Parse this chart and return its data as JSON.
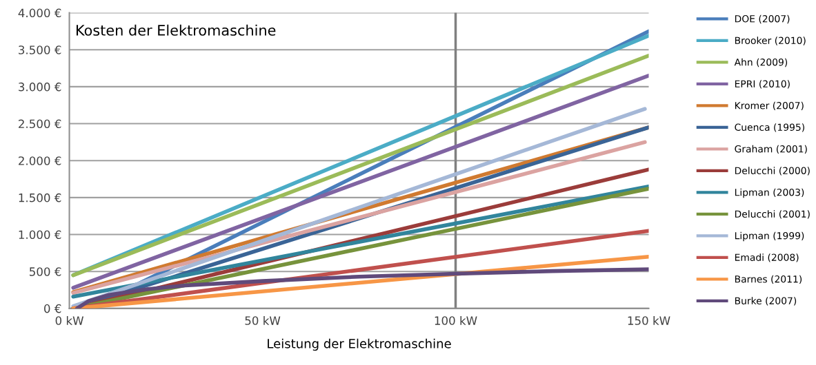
{
  "chart_data": {
    "type": "line",
    "title": "Kosten der Elektromaschine",
    "xlabel": "Leistung der Elektromaschine",
    "xlim": [
      0,
      150
    ],
    "ylim": [
      0,
      4000
    ],
    "xticks": [
      {
        "value": 0,
        "label": "0 kW"
      },
      {
        "value": 50,
        "label": "50 kW"
      },
      {
        "value": 100,
        "label": "100 kW"
      },
      {
        "value": 150,
        "label": "150 kW"
      }
    ],
    "yticks": [
      {
        "value": 0,
        "label": "0 €"
      },
      {
        "value": 500,
        "label": "500 €"
      },
      {
        "value": 1000,
        "label": "1.000 €"
      },
      {
        "value": 1500,
        "label": "1.500 €"
      },
      {
        "value": 2000,
        "label": "2.000 €"
      },
      {
        "value": 2500,
        "label": "2.500 €"
      },
      {
        "value": 3000,
        "label": "3.000 €"
      },
      {
        "value": 3500,
        "label": "3.500 €"
      },
      {
        "value": 4000,
        "label": "4.000 €"
      }
    ],
    "grid": "y",
    "legend": "right",
    "marker": "none",
    "line_style": "solid",
    "ref_lines": [
      {
        "axis": "x",
        "value": 100,
        "color": "#808080"
      }
    ],
    "series": [
      {
        "name": "DOE (2007)",
        "color": "#4a7ebb",
        "x": [
          5,
          150
        ],
        "values": [
          0,
          3750
        ]
      },
      {
        "name": "Brooker (2010)",
        "color": "#4bacc6",
        "x": [
          1,
          150
        ],
        "values": [
          450,
          3690
        ]
      },
      {
        "name": "Ahn (2009)",
        "color": "#9bbb59",
        "x": [
          1,
          150
        ],
        "values": [
          450,
          3420
        ]
      },
      {
        "name": "EPRI (2010)",
        "color": "#8064a2",
        "x": [
          1,
          150
        ],
        "values": [
          280,
          3150
        ]
      },
      {
        "name": "Kromer (2007)",
        "color": "#d07a30",
        "x": [
          1,
          150
        ],
        "values": [
          220,
          2450
        ]
      },
      {
        "name": "Cuenca (1995)",
        "color": "#3a6496",
        "x": [
          1,
          150
        ],
        "values": [
          0,
          2450
        ]
      },
      {
        "name": "Graham (2001)",
        "color": "#dba3a1",
        "x": [
          1,
          149
        ],
        "values": [
          210,
          2250
        ]
      },
      {
        "name": "Delucchi (2000)",
        "color": "#9b3c3a",
        "x": [
          1,
          150
        ],
        "values": [
          0,
          1880
        ]
      },
      {
        "name": "Lipman (2003)",
        "color": "#31859c",
        "x": [
          1,
          150
        ],
        "values": [
          160,
          1650
        ]
      },
      {
        "name": "Delucchi (2001)",
        "color": "#77933c",
        "x": [
          1,
          150
        ],
        "values": [
          0,
          1620
        ]
      },
      {
        "name": "Lipman (1999)",
        "color": "#a5b8d7",
        "x": [
          1,
          149
        ],
        "values": [
          30,
          2700
        ]
      },
      {
        "name": "Emadi (2008)",
        "color": "#c0504d",
        "x": [
          1,
          150
        ],
        "values": [
          0,
          1050
        ]
      },
      {
        "name": "Barnes (2011)",
        "color": "#f79646",
        "x": [
          1,
          150
        ],
        "values": [
          0,
          700
        ]
      },
      {
        "name": "Burke (2007)",
        "color": "#604a7b",
        "x": [
          2,
          5,
          10,
          20,
          30,
          50,
          75,
          100,
          125,
          150
        ],
        "values": [
          0,
          100,
          180,
          260,
          310,
          370,
          430,
          470,
          505,
          530
        ]
      }
    ]
  }
}
